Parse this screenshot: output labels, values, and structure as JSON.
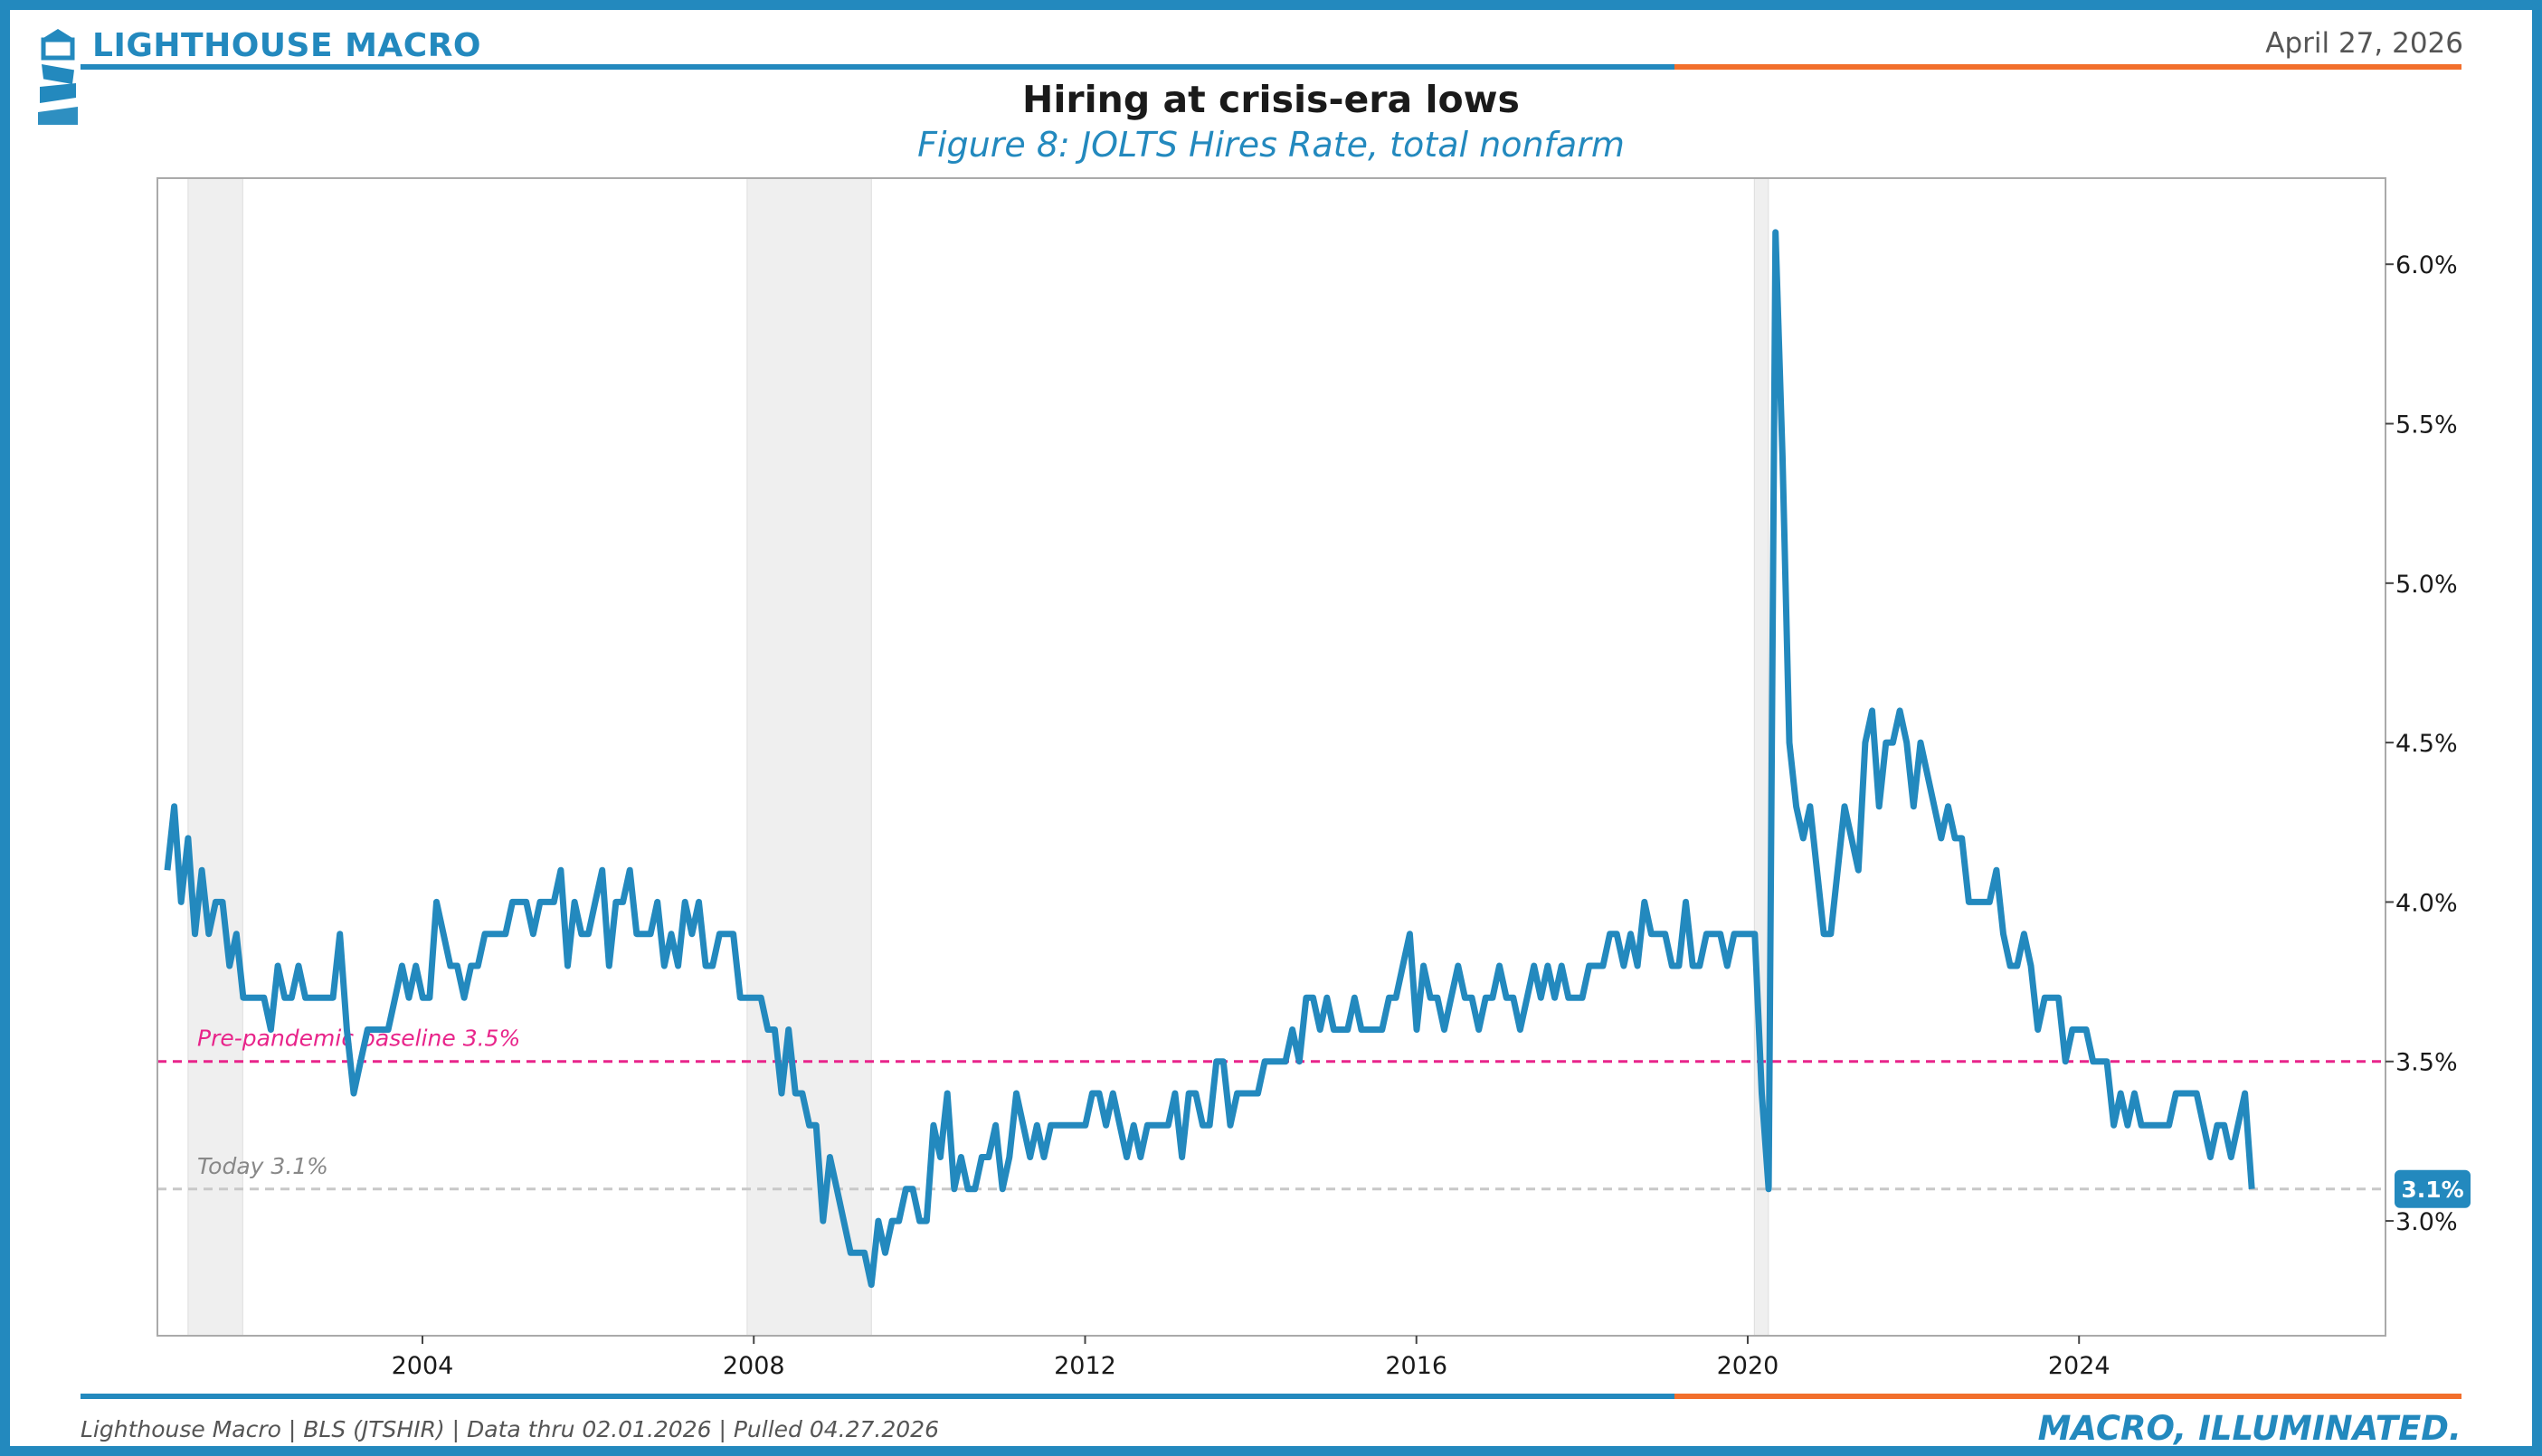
{
  "header": {
    "brand": "LIGHTHOUSE MACRO",
    "date": "April 27, 2026"
  },
  "footer": {
    "source": "Lighthouse Macro | BLS (JTSHIR) | Data thru 02.01.2026 | Pulled 04.27.2026",
    "tagline": "MACRO, ILLUMINATED."
  },
  "colors": {
    "brand_blue": "#2389be",
    "accent_orange": "#f26f2c",
    "baseline_pink": "#e8248a",
    "recession_gray": "#efefef"
  },
  "chart_data": {
    "type": "line",
    "title": "Hiring at crisis-era lows",
    "subtitle": "Figure 8: JOLTS Hires Rate, total nonfarm",
    "xlabel": "",
    "ylabel": "",
    "xlim": [
      2000.8,
      2027.7
    ],
    "ylim": [
      2.64,
      6.27
    ],
    "x_ticks": [
      2004,
      2008,
      2012,
      2016,
      2020,
      2024
    ],
    "x_tick_labels": [
      "2004",
      "2008",
      "2012",
      "2016",
      "2020",
      "2024"
    ],
    "y_ticks": [
      3.0,
      3.5,
      4.0,
      4.5,
      5.0,
      5.5,
      6.0
    ],
    "y_tick_labels": [
      "3.0%",
      "3.5%",
      "4.0%",
      "4.5%",
      "5.0%",
      "5.5%",
      "6.0%"
    ],
    "y_axis_side": "right",
    "grid": false,
    "recessions": [
      {
        "start": 2001.17,
        "end": 2001.83
      },
      {
        "start": 2007.92,
        "end": 2009.42
      },
      {
        "start": 2020.08,
        "end": 2020.25
      }
    ],
    "reference_lines": [
      {
        "value": 3.5,
        "label": "Pre-pandemic baseline 3.5%",
        "style": "dashed",
        "color": "#e8248a"
      },
      {
        "value": 3.1,
        "label": "Today 3.1%",
        "style": "dashed",
        "color": "#c8c8c8"
      }
    ],
    "last_value_label": "3.1%",
    "series": [
      {
        "name": "JOLTS Hires Rate",
        "color": "#2389be",
        "start": 2000.92,
        "step": 0.08333,
        "values": [
          4.1,
          4.3,
          4.0,
          4.2,
          3.9,
          4.1,
          3.9,
          4.0,
          4.0,
          3.8,
          3.9,
          3.7,
          3.7,
          3.7,
          3.7,
          3.6,
          3.8,
          3.7,
          3.7,
          3.8,
          3.7,
          3.7,
          3.7,
          3.7,
          3.7,
          3.9,
          3.6,
          3.4,
          3.5,
          3.6,
          3.6,
          3.6,
          3.6,
          3.7,
          3.8,
          3.7,
          3.8,
          3.7,
          3.7,
          4.0,
          3.9,
          3.8,
          3.8,
          3.7,
          3.8,
          3.8,
          3.9,
          3.9,
          3.9,
          3.9,
          4.0,
          4.0,
          4.0,
          3.9,
          4.0,
          4.0,
          4.0,
          4.1,
          3.8,
          4.0,
          3.9,
          3.9,
          4.0,
          4.1,
          3.8,
          4.0,
          4.0,
          4.1,
          3.9,
          3.9,
          3.9,
          4.0,
          3.8,
          3.9,
          3.8,
          4.0,
          3.9,
          4.0,
          3.8,
          3.8,
          3.9,
          3.9,
          3.9,
          3.7,
          3.7,
          3.7,
          3.7,
          3.6,
          3.6,
          3.4,
          3.6,
          3.4,
          3.4,
          3.3,
          3.3,
          3.0,
          3.2,
          3.1,
          3.0,
          2.9,
          2.9,
          2.9,
          2.8,
          3.0,
          2.9,
          3.0,
          3.0,
          3.1,
          3.1,
          3.0,
          3.0,
          3.3,
          3.2,
          3.4,
          3.1,
          3.2,
          3.1,
          3.1,
          3.2,
          3.2,
          3.3,
          3.1,
          3.2,
          3.4,
          3.3,
          3.2,
          3.3,
          3.2,
          3.3,
          3.3,
          3.3,
          3.3,
          3.3,
          3.3,
          3.4,
          3.4,
          3.3,
          3.4,
          3.3,
          3.2,
          3.3,
          3.2,
          3.3,
          3.3,
          3.3,
          3.3,
          3.4,
          3.2,
          3.4,
          3.4,
          3.3,
          3.3,
          3.5,
          3.5,
          3.3,
          3.4,
          3.4,
          3.4,
          3.4,
          3.5,
          3.5,
          3.5,
          3.5,
          3.6,
          3.5,
          3.7,
          3.7,
          3.6,
          3.7,
          3.6,
          3.6,
          3.6,
          3.7,
          3.6,
          3.6,
          3.6,
          3.6,
          3.7,
          3.7,
          3.8,
          3.9,
          3.6,
          3.8,
          3.7,
          3.7,
          3.6,
          3.7,
          3.8,
          3.7,
          3.7,
          3.6,
          3.7,
          3.7,
          3.8,
          3.7,
          3.7,
          3.6,
          3.7,
          3.8,
          3.7,
          3.8,
          3.7,
          3.8,
          3.7,
          3.7,
          3.7,
          3.8,
          3.8,
          3.8,
          3.9,
          3.9,
          3.8,
          3.9,
          3.8,
          4.0,
          3.9,
          3.9,
          3.9,
          3.8,
          3.8,
          4.0,
          3.8,
          3.8,
          3.9,
          3.9,
          3.9,
          3.8,
          3.9,
          3.9,
          3.9,
          3.9,
          3.4,
          3.1,
          6.1,
          5.4,
          4.5,
          4.3,
          4.2,
          4.3,
          4.1,
          3.9,
          3.9,
          4.1,
          4.3,
          4.2,
          4.1,
          4.5,
          4.6,
          4.3,
          4.5,
          4.5,
          4.6,
          4.5,
          4.3,
          4.5,
          4.4,
          4.3,
          4.2,
          4.3,
          4.2,
          4.2,
          4.0,
          4.0,
          4.0,
          4.0,
          4.1,
          3.9,
          3.8,
          3.8,
          3.9,
          3.8,
          3.6,
          3.7,
          3.7,
          3.7,
          3.5,
          3.6,
          3.6,
          3.6,
          3.5,
          3.5,
          3.5,
          3.3,
          3.4,
          3.3,
          3.4,
          3.3,
          3.3,
          3.3,
          3.3,
          3.3,
          3.4,
          3.4,
          3.4,
          3.4,
          3.3,
          3.2,
          3.3,
          3.3,
          3.2,
          3.3,
          3.4,
          3.1
        ]
      }
    ]
  }
}
